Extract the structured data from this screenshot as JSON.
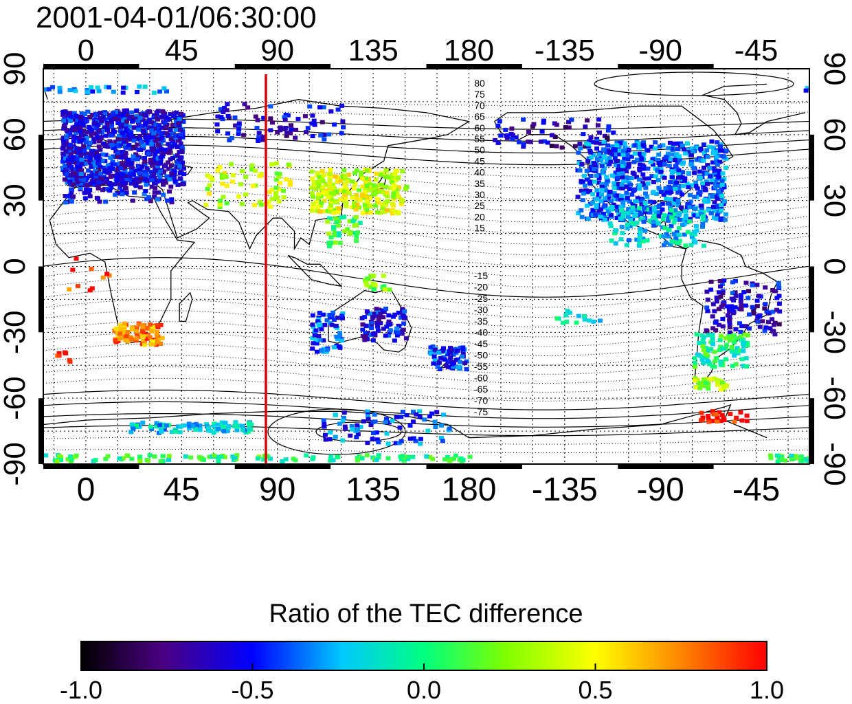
{
  "title": "2001-04-01/06:30:00",
  "map": {
    "top_lon_ticks": [
      "0",
      "45",
      "90",
      "135",
      "180",
      "-135",
      "-90",
      "-45"
    ],
    "bottom_lon_ticks": [
      "0",
      "45",
      "90",
      "135",
      "180",
      "-135",
      "-90",
      "-45"
    ],
    "left_lat_ticks": [
      "90",
      "60",
      "30",
      "0",
      "-30",
      "-60",
      "-90"
    ],
    "right_lat_ticks": [
      "90",
      "60",
      "30",
      "0",
      "-30",
      "-60",
      "-90"
    ],
    "contour_labels_north": [
      "80",
      "75",
      "70",
      "65",
      "60",
      "55",
      "50",
      "45",
      "40",
      "35",
      "30",
      "25",
      "20",
      "15"
    ],
    "contour_labels_south": [
      "-15",
      "-20",
      "-25",
      "-30",
      "-35",
      "-40",
      "-45",
      "-50",
      "-55",
      "-60",
      "-65",
      "-70",
      "-75"
    ],
    "marker_line_color": "#dd0000",
    "map_frame_color": "#000000"
  },
  "colorbar": {
    "title": "Ratio of the TEC difference",
    "ticks": [
      "-1.0",
      "-0.5",
      "0.0",
      "0.5",
      "1.0"
    ],
    "range": [
      -1.0,
      1.0
    ]
  }
}
